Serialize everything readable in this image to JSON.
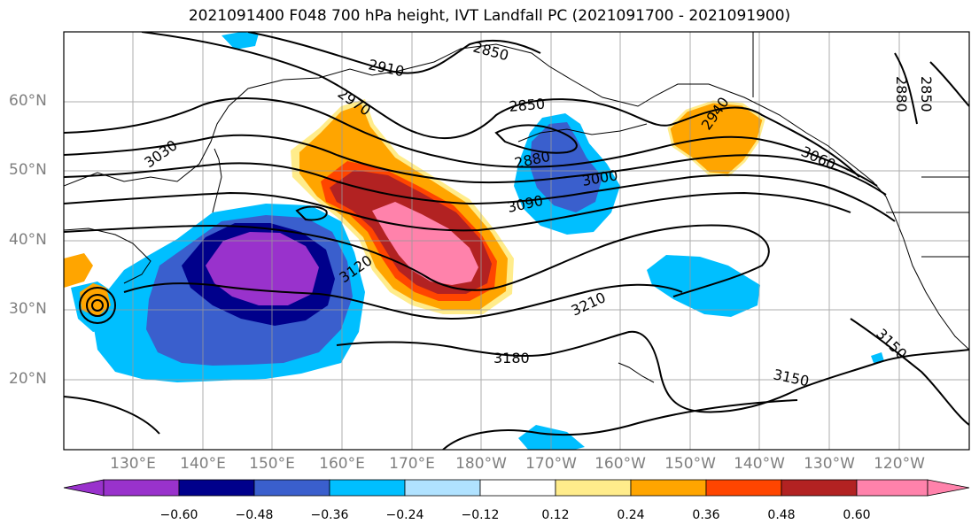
{
  "title": "2021091400 F048 700 hPa height, IVT Landfall PC (2021091700 - 2021091900)",
  "lat_labels": [
    "60°N",
    "50°N",
    "40°N",
    "30°N",
    "20°N"
  ],
  "lon_labels": [
    "130°E",
    "140°E",
    "150°E",
    "160°E",
    "170°E",
    "180°W",
    "170°W",
    "160°W",
    "150°W",
    "140°W",
    "130°W",
    "120°W"
  ],
  "contour_labels": [
    "2850",
    "2910",
    "2970",
    "3030",
    "2850",
    "2880",
    "2940",
    "3000",
    "3090",
    "3060",
    "3120",
    "3210",
    "3180",
    "3150",
    "3150",
    "2850",
    "2880"
  ],
  "colorbar": {
    "tick_labels": [
      "−0.60",
      "−0.48",
      "−0.36",
      "−0.24",
      "−0.12",
      "0.12",
      "0.24",
      "0.36",
      "0.48",
      "0.60"
    ],
    "colors": [
      "#9932cc",
      "#00008b",
      "#3a5fcd",
      "#00bfff",
      "#b0e2ff",
      "#ffffff",
      "#ffec8b",
      "#ffa500",
      "#ff4500",
      "#b22222",
      "#ff82ab"
    ]
  },
  "map": {
    "projection": "cylindrical",
    "lon_range": [
      "120°E",
      "130°W"
    ],
    "lat_range": [
      "10°N",
      "70°N"
    ],
    "gridlines": true,
    "fill_colors": {
      "purple": "#9932cc",
      "navy": "#00008b",
      "blue": "#3a5fcd",
      "cyan": "#00bfff",
      "lightblue": "#b0e2ff",
      "yellow": "#ffec8b",
      "orange": "#ffa500",
      "redorange": "#ff4500",
      "darkred": "#b22222",
      "pink": "#ff82ab"
    }
  }
}
